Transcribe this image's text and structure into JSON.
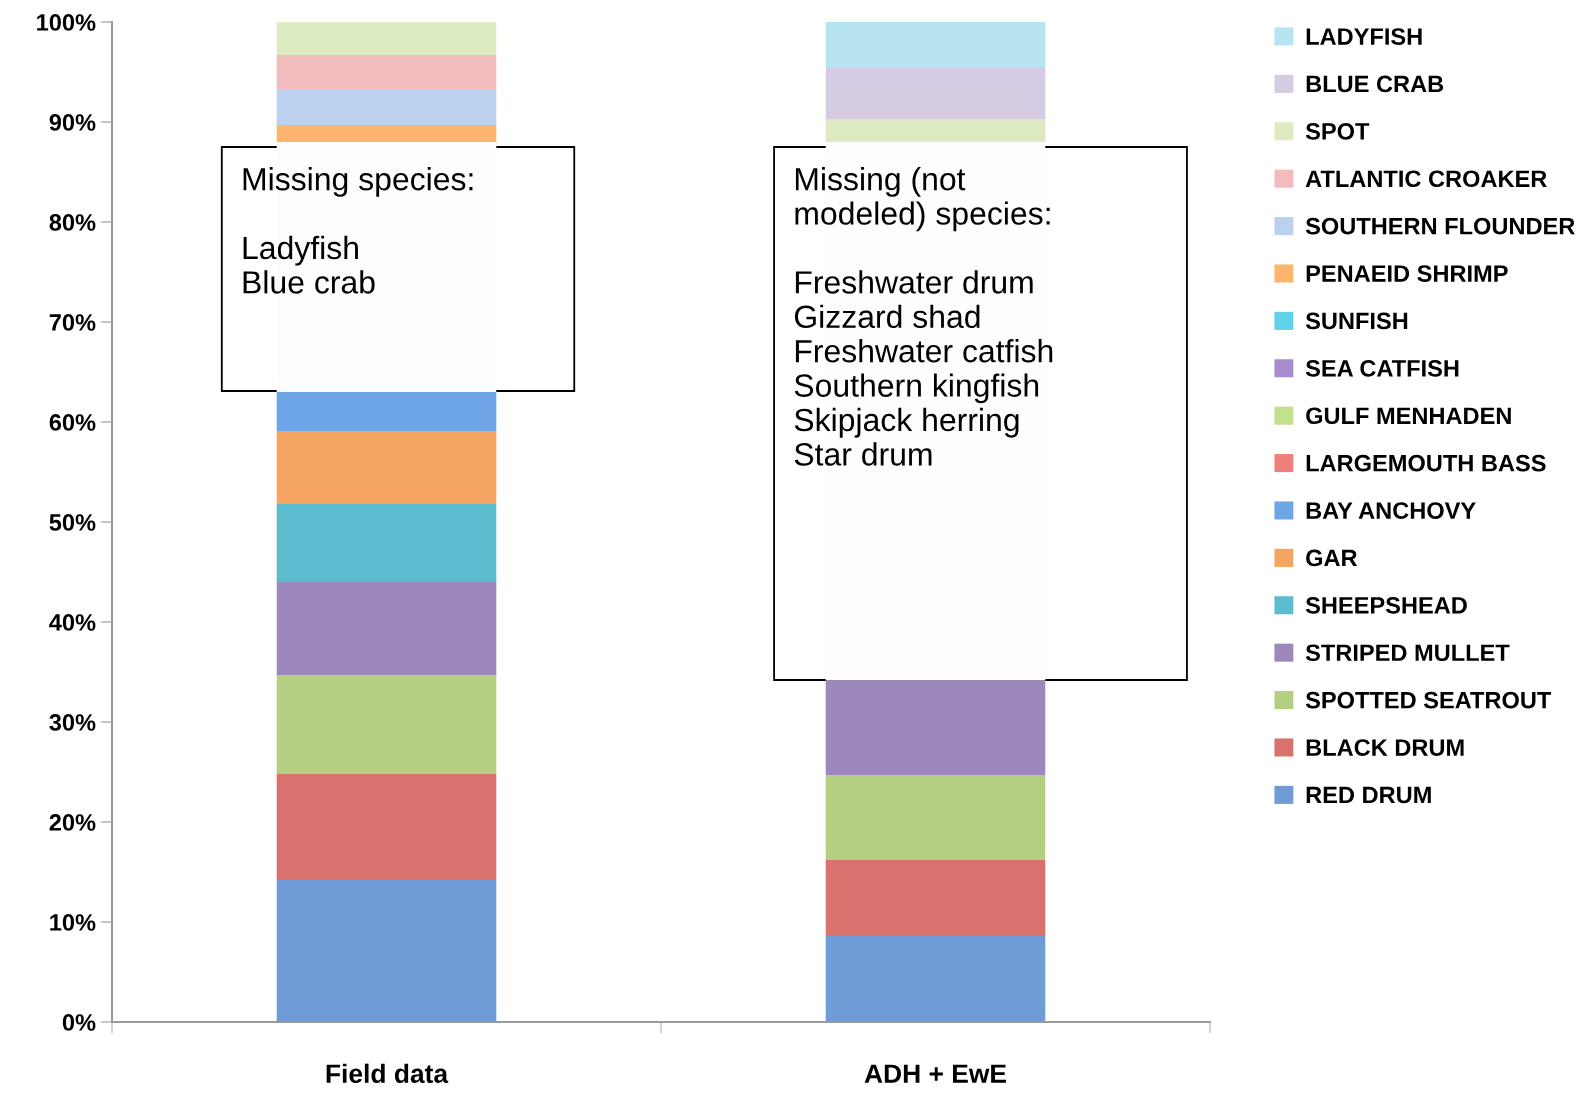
{
  "chart_data": {
    "type": "bar",
    "stacked": true,
    "categories": [
      "Field data",
      "ADH + EwE"
    ],
    "series": [
      {
        "name": "RED DRUM",
        "color": "#6f9bd6",
        "values": [
          14.2,
          8.6
        ]
      },
      {
        "name": "BLACK DRUM",
        "color": "#d9726e",
        "values": [
          10.6,
          7.6
        ]
      },
      {
        "name": "SPOTTED SEATROUT",
        "color": "#b5cf82",
        "values": [
          9.9,
          8.5
        ]
      },
      {
        "name": "STRIPED MULLET",
        "color": "#9d88bc",
        "values": [
          9.3,
          9.5
        ]
      },
      {
        "name": "SHEEPSHEAD",
        "color": "#5bbcd0",
        "values": [
          7.8,
          null
        ]
      },
      {
        "name": "GAR",
        "color": "#f5a462",
        "values": [
          7.3,
          null
        ]
      },
      {
        "name": "BAY ANCHOVY",
        "color": "#6ea5e6",
        "values": [
          3.9,
          null
        ]
      },
      {
        "color": "#fdfdfd",
        "values": [
          25.0,
          53.8
        ]
      },
      {
        "name": "LARGEMOUTH BASS",
        "color": "#ef7f7a",
        "values": [
          null,
          null
        ]
      },
      {
        "name": "GULF MENHADEN",
        "color": "#c3e08c",
        "values": [
          null,
          null
        ]
      },
      {
        "name": "SEA CATFISH",
        "color": "#a98ccf",
        "values": [
          null,
          null
        ]
      },
      {
        "name": "SUNFISH",
        "color": "#5fd2ea",
        "values": [
          null,
          null
        ]
      },
      {
        "name": "PENAEID SHRIMP",
        "color": "#fdb56e",
        "values": [
          1.7,
          null
        ]
      },
      {
        "name": "SOUTHERN FLOUNDER",
        "color": "#bcd0f0",
        "values": [
          3.6,
          null
        ]
      },
      {
        "name": "ATLANTIC CROAKER",
        "color": "#f2bcbc",
        "values": [
          3.4,
          null
        ]
      },
      {
        "name": "SPOT",
        "color": "#dcebc2",
        "values": [
          3.3,
          2.3
        ]
      },
      {
        "name": "BLUE CRAB",
        "color": "#d5cbe3",
        "values": [
          null,
          5.2
        ]
      },
      {
        "name": "LADYFISH",
        "color": "#b8e4f2",
        "values": [
          null,
          4.5
        ]
      }
    ],
    "ylim": [
      0,
      100
    ],
    "yticks": [
      {
        "value": 0,
        "label": "0%"
      },
      {
        "value": 10,
        "label": "10%"
      },
      {
        "value": 20,
        "label": "20%"
      },
      {
        "value": 30,
        "label": "30%"
      },
      {
        "value": 40,
        "label": "40%"
      },
      {
        "value": 50,
        "label": "50%"
      },
      {
        "value": 60,
        "label": "60%"
      },
      {
        "value": 70,
        "label": "70%"
      },
      {
        "value": 80,
        "label": "80%"
      },
      {
        "value": 90,
        "label": "90%"
      },
      {
        "value": 100,
        "label": "100%"
      }
    ],
    "grid": false,
    "legend": "right",
    "annotations": [
      "Missing species:\n\nLadyfish\nBlue crab",
      "Missing (not\nmodeled) species:\n\nFreshwater drum\nGizzard shad\nFreshwater catfish\nSouthern kingfish\nSkipjack herring\nStar drum"
    ]
  }
}
